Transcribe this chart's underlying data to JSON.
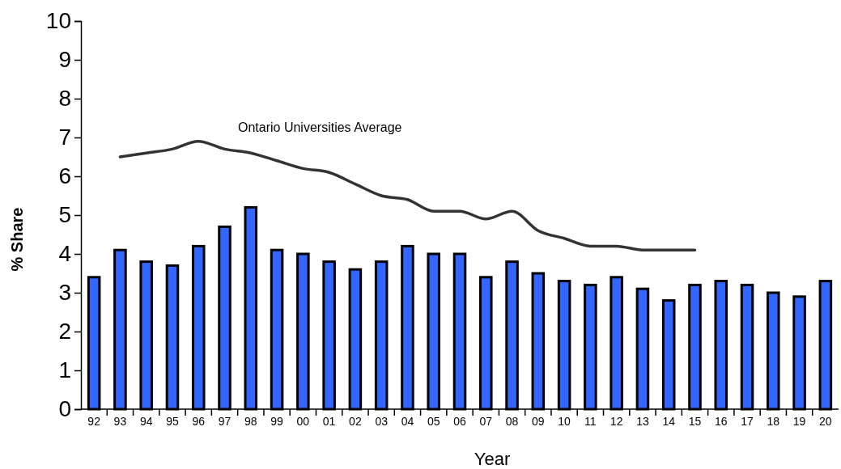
{
  "chart_data": {
    "type": "bar",
    "xlabel": "Year",
    "ylabel": "% Share",
    "categories": [
      "92",
      "93",
      "94",
      "95",
      "96",
      "97",
      "98",
      "99",
      "00",
      "01",
      "02",
      "03",
      "04",
      "05",
      "06",
      "07",
      "08",
      "09",
      "10",
      "11",
      "12",
      "13",
      "14",
      "15",
      "16",
      "17",
      "18",
      "19",
      "20"
    ],
    "ylim": [
      0,
      10
    ],
    "yticks": [
      0,
      1,
      2,
      3,
      4,
      5,
      6,
      7,
      8,
      9,
      10
    ],
    "grid": false,
    "series": [
      {
        "color": "#3366ff",
        "values": [
          3.4,
          4.1,
          3.8,
          3.7,
          4.2,
          4.7,
          5.2,
          4.1,
          4.0,
          3.8,
          3.6,
          3.8,
          4.2,
          4.0,
          4.0,
          3.4,
          3.8,
          3.5,
          3.3,
          3.2,
          3.4,
          3.1,
          2.8,
          3.2,
          3.3,
          3.2,
          3.0,
          2.9,
          3.3
        ]
      },
      {
        "type": "line",
        "name": "Ontario Universities Average",
        "color": "#333333",
        "values": [
          null,
          6.5,
          6.6,
          6.7,
          6.9,
          6.7,
          6.6,
          6.4,
          6.2,
          6.1,
          5.8,
          5.5,
          5.4,
          5.1,
          5.1,
          4.9,
          5.1,
          4.6,
          4.4,
          4.2,
          4.2,
          4.1,
          4.1,
          4.1,
          null,
          null,
          null,
          null,
          null
        ]
      }
    ]
  }
}
